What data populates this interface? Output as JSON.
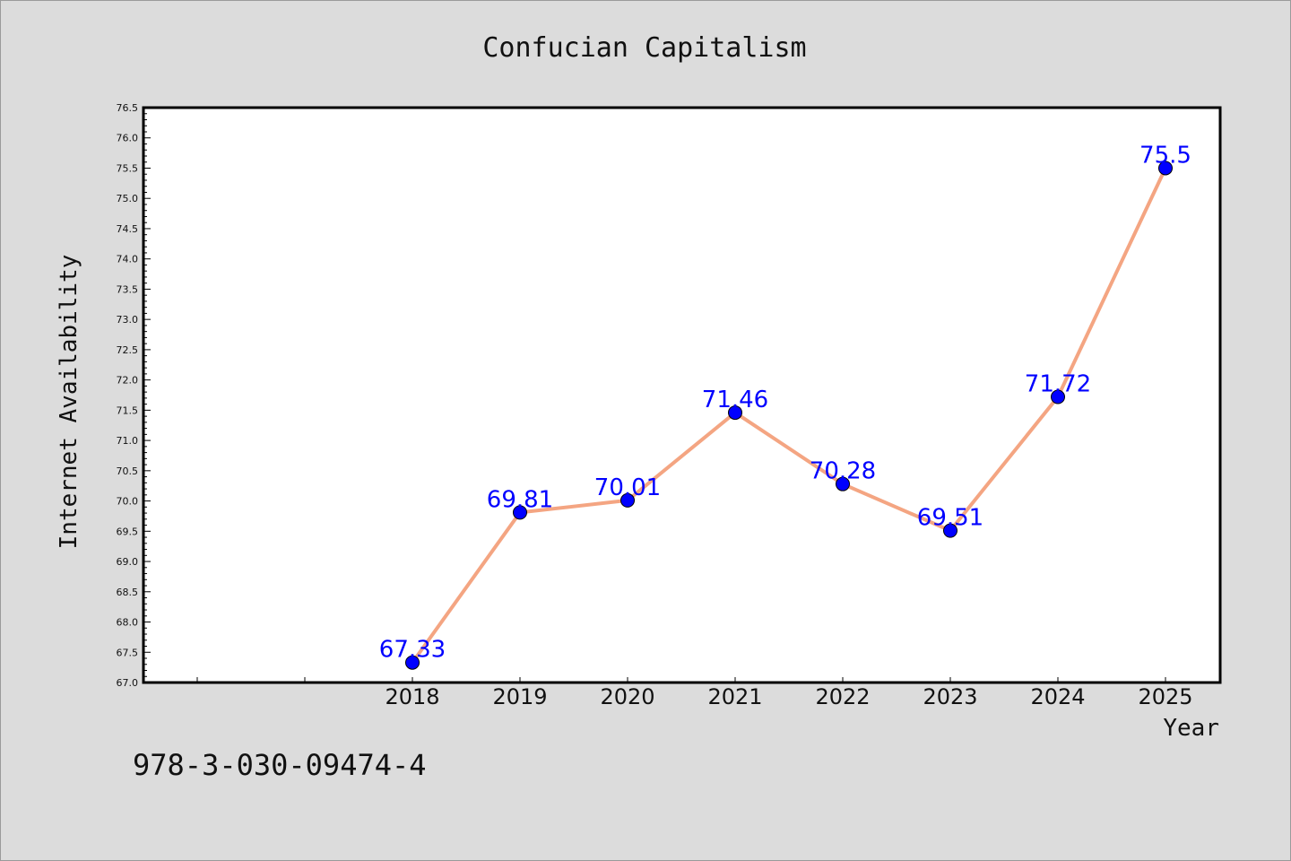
{
  "chart_data": {
    "type": "line",
    "title": "Confucian Capitalism",
    "xlabel": "Year",
    "ylabel": "Internet Availability",
    "categories": [
      "2018",
      "2019",
      "2020",
      "2021",
      "2022",
      "2023",
      "2024",
      "2025"
    ],
    "series": [
      {
        "values": [
          67.33,
          69.81,
          70.01,
          71.46,
          70.28,
          69.51,
          71.72,
          75.5
        ],
        "labels": [
          "67.33",
          "69.81",
          "70.01",
          "71.46",
          "70.28",
          "69.51",
          "71.72",
          "75.5"
        ]
      }
    ],
    "ylim": [
      67.0,
      76.5
    ],
    "yticks": [
      "67.0",
      "67.5",
      "68.0",
      "68.5",
      "69.0",
      "69.5",
      "70.0",
      "70.5",
      "71.0",
      "71.5",
      "72.0",
      "72.5",
      "73.0",
      "73.5",
      "74.0",
      "74.5",
      "75.0",
      "75.5",
      "76.0",
      "76.5"
    ],
    "grid": false,
    "legend": "none",
    "colors": {
      "line": "#f4a582",
      "marker": "#0000ff",
      "data_label": "#0000ff",
      "background": "#dcdcdc",
      "plot_background": "#ffffff"
    }
  },
  "footer": {
    "isbn": "978-3-030-09474-4"
  }
}
